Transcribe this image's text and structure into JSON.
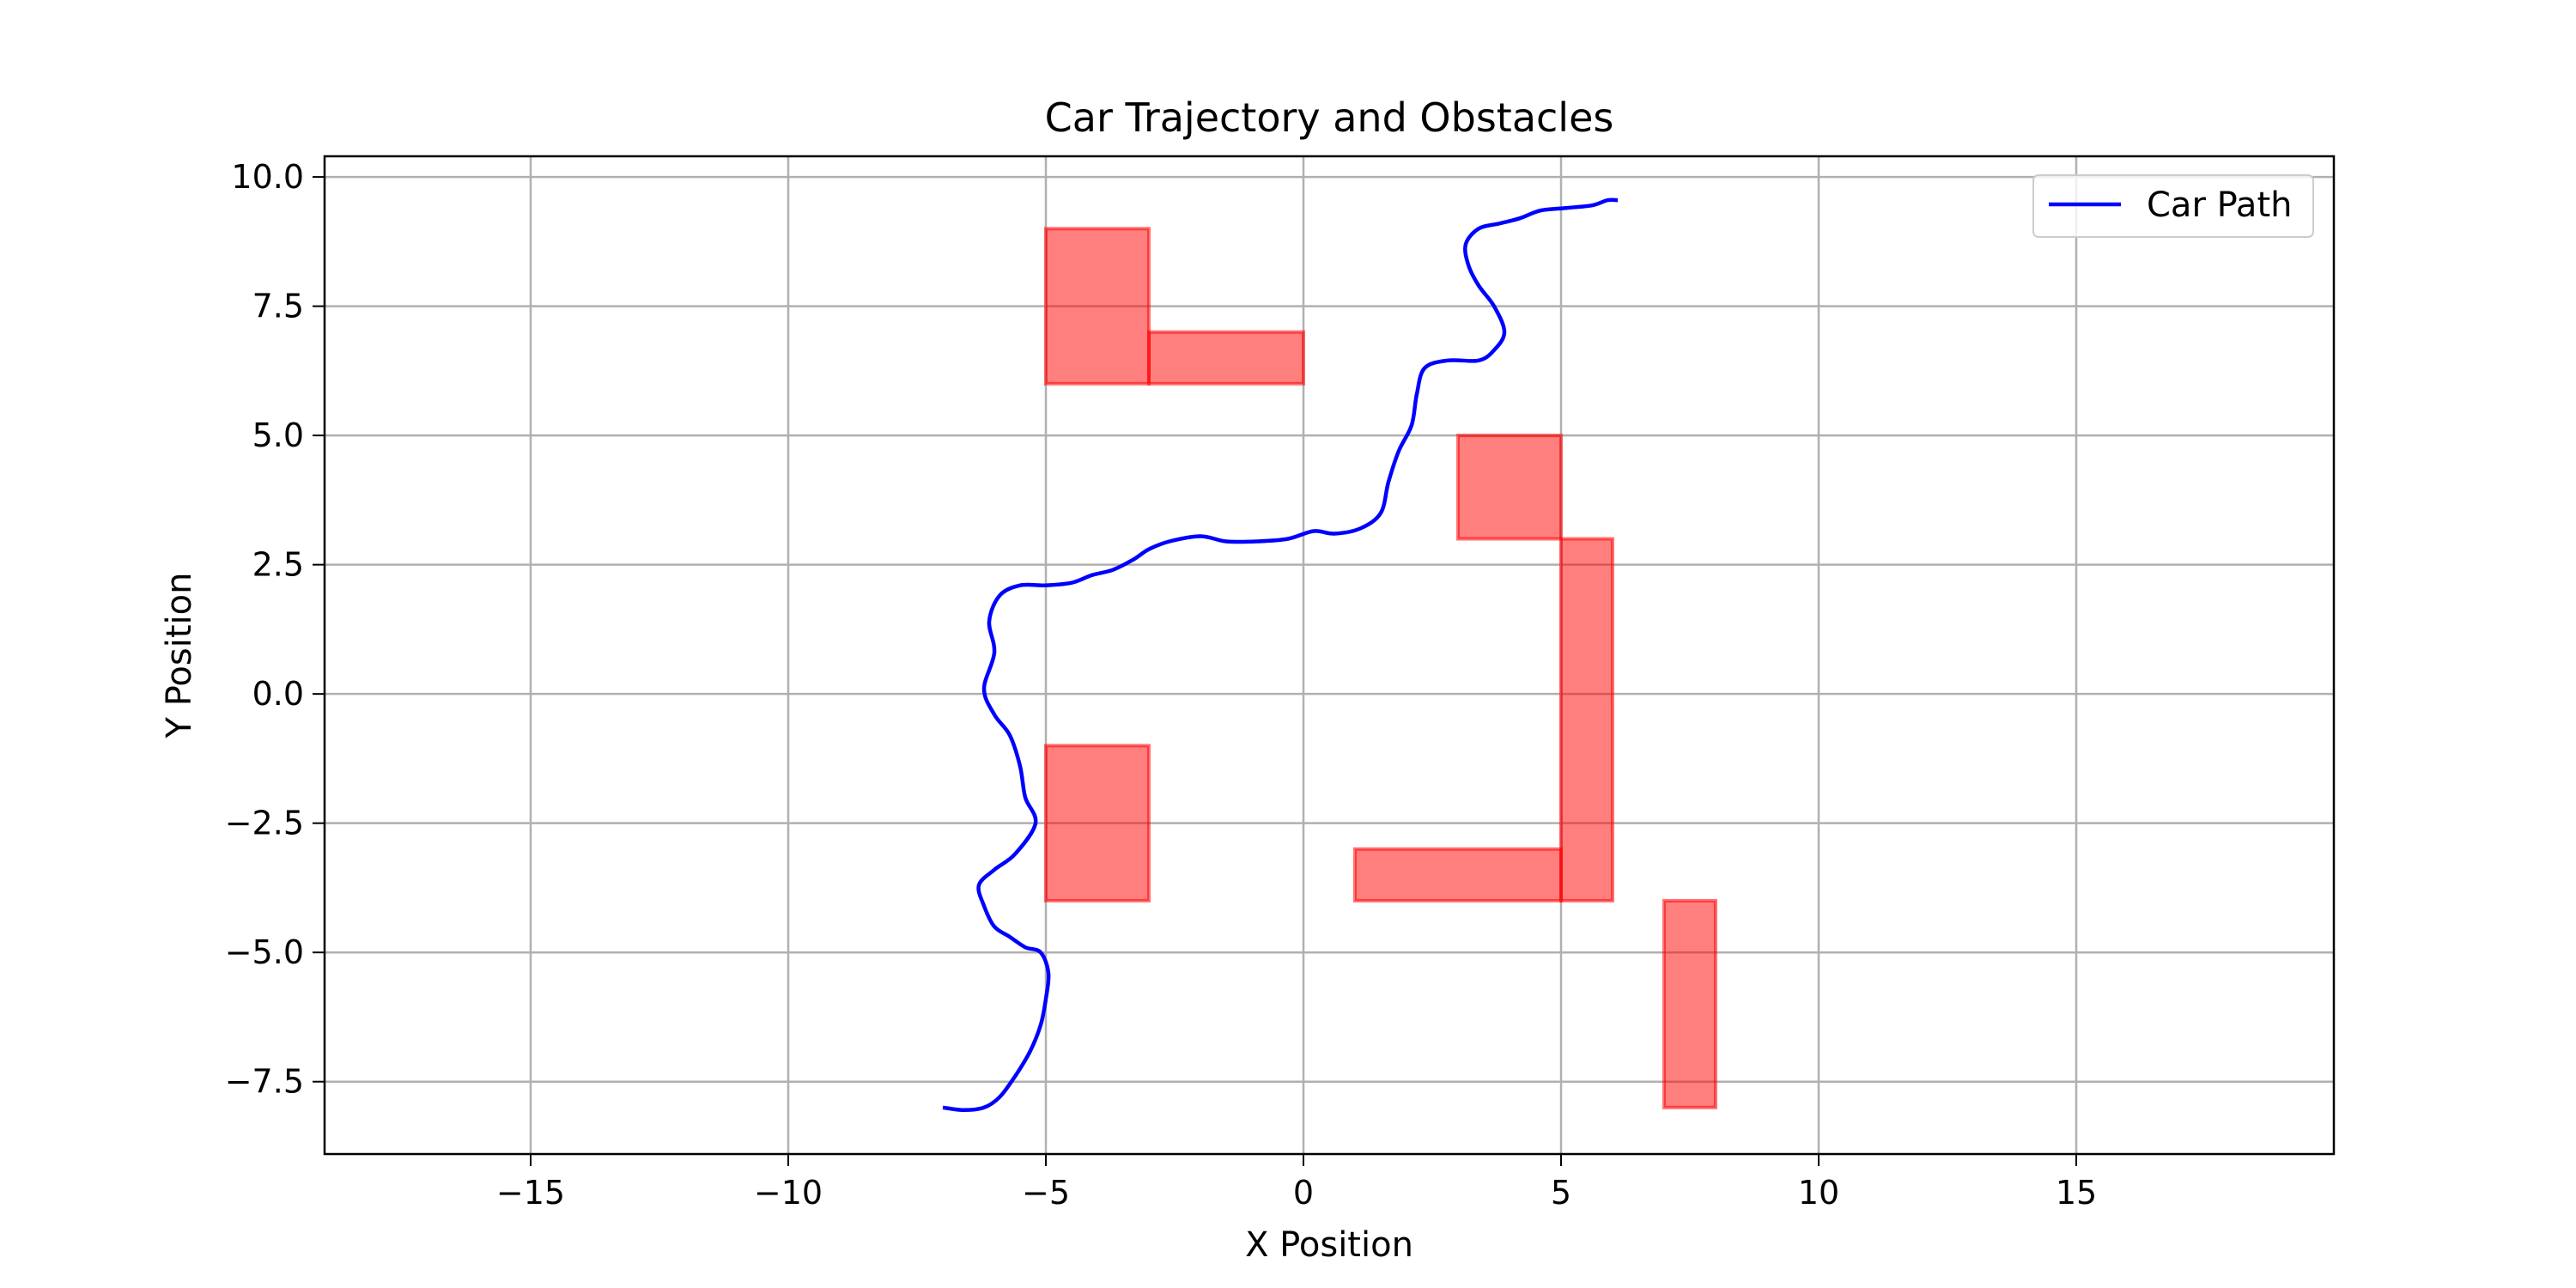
{
  "chart_data": {
    "type": "line",
    "title": "Car Trajectory and Obstacles",
    "xlabel": "X Position",
    "ylabel": "Y Position",
    "xlim": [
      -19,
      20
    ],
    "ylim": [
      -8.9,
      10.4
    ],
    "xticks": [
      -15,
      -10,
      -5,
      0,
      5,
      10,
      15
    ],
    "yticks": [
      -7.5,
      -5.0,
      -2.5,
      0.0,
      2.5,
      5.0,
      7.5,
      10.0
    ],
    "xtick_labels": [
      "−15",
      "−10",
      "−5",
      "0",
      "5",
      "10",
      "15"
    ],
    "ytick_labels": [
      "−7.5",
      "−5.0",
      "−2.5",
      "0.0",
      "2.5",
      "5.0",
      "7.5",
      "10.0"
    ],
    "grid": true,
    "legend_position": "top-right",
    "colors": {
      "path": "#0000ff",
      "obstacle_fill": "#ff0000",
      "grid": "#b0b0b0"
    },
    "series": [
      {
        "name": "Car Path",
        "points": [
          [
            -7.0,
            -8.0
          ],
          [
            -6.6,
            -8.05
          ],
          [
            -6.2,
            -8.0
          ],
          [
            -5.9,
            -7.8
          ],
          [
            -5.6,
            -7.4
          ],
          [
            -5.3,
            -6.9
          ],
          [
            -5.1,
            -6.4
          ],
          [
            -5.0,
            -5.9
          ],
          [
            -4.95,
            -5.4
          ],
          [
            -5.1,
            -5.0
          ],
          [
            -5.4,
            -4.9
          ],
          [
            -5.7,
            -4.7
          ],
          [
            -6.0,
            -4.5
          ],
          [
            -6.2,
            -4.1
          ],
          [
            -6.3,
            -3.7
          ],
          [
            -6.0,
            -3.4
          ],
          [
            -5.6,
            -3.1
          ],
          [
            -5.2,
            -2.5
          ],
          [
            -5.4,
            -2.0
          ],
          [
            -5.5,
            -1.4
          ],
          [
            -5.7,
            -0.8
          ],
          [
            -6.0,
            -0.4
          ],
          [
            -6.2,
            0.1
          ],
          [
            -6.0,
            0.8
          ],
          [
            -6.1,
            1.4
          ],
          [
            -5.9,
            1.9
          ],
          [
            -5.5,
            2.1
          ],
          [
            -5.0,
            2.1
          ],
          [
            -4.5,
            2.15
          ],
          [
            -4.1,
            2.3
          ],
          [
            -3.7,
            2.4
          ],
          [
            -3.3,
            2.6
          ],
          [
            -3.0,
            2.8
          ],
          [
            -2.6,
            2.95
          ],
          [
            -2.0,
            3.05
          ],
          [
            -1.5,
            2.95
          ],
          [
            -0.9,
            2.95
          ],
          [
            -0.3,
            3.0
          ],
          [
            0.2,
            3.15
          ],
          [
            0.6,
            3.1
          ],
          [
            1.1,
            3.2
          ],
          [
            1.5,
            3.5
          ],
          [
            1.65,
            4.1
          ],
          [
            1.85,
            4.7
          ],
          [
            2.1,
            5.2
          ],
          [
            2.2,
            5.8
          ],
          [
            2.35,
            6.3
          ],
          [
            2.8,
            6.45
          ],
          [
            3.4,
            6.45
          ],
          [
            3.7,
            6.65
          ],
          [
            3.9,
            7.0
          ],
          [
            3.7,
            7.5
          ],
          [
            3.4,
            7.9
          ],
          [
            3.2,
            8.3
          ],
          [
            3.15,
            8.7
          ],
          [
            3.4,
            9.0
          ],
          [
            3.8,
            9.1
          ],
          [
            4.2,
            9.2
          ],
          [
            4.6,
            9.35
          ],
          [
            5.1,
            9.4
          ],
          [
            5.6,
            9.45
          ],
          [
            5.9,
            9.55
          ],
          [
            6.1,
            9.55
          ]
        ]
      }
    ],
    "obstacles": [
      {
        "x": -5,
        "y": 6,
        "width": 2,
        "height": 3
      },
      {
        "x": -3,
        "y": 6,
        "width": 3,
        "height": 1
      },
      {
        "x": 3,
        "y": 3,
        "width": 2,
        "height": 2
      },
      {
        "x": 5,
        "y": -4,
        "width": 1,
        "height": 7
      },
      {
        "x": 1,
        "y": -4,
        "width": 4,
        "height": 1
      },
      {
        "x": -5,
        "y": -4,
        "width": 2,
        "height": 3
      },
      {
        "x": 7,
        "y": -8,
        "width": 1,
        "height": 4
      }
    ]
  }
}
